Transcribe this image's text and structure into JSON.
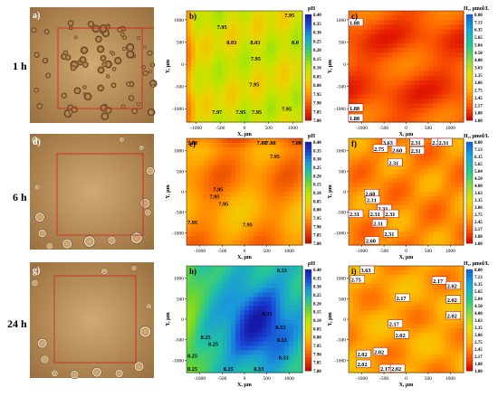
{
  "row_labels": [
    "1 h",
    "6 h",
    "24 h"
  ],
  "panel_letters": [
    "a)",
    "b)",
    "c)",
    "d)",
    "e)",
    "f)",
    "g)",
    "h)",
    "i)"
  ],
  "colors": {
    "ph_scale": [
      "#b40e00",
      "#e33a00",
      "#ff7a00",
      "#ffb000",
      "#e6d800",
      "#b8e600",
      "#6ad630",
      "#22c4a0",
      "#1a9ad8",
      "#1846d8",
      "#1818a8"
    ],
    "h2_scale": [
      "#d80000",
      "#ff6000",
      "#ffb000",
      "#e8e000",
      "#88d840",
      "#20c890",
      "#18a8e0",
      "#1060d8"
    ],
    "frame_red": "#d02020",
    "micro_base": "#b48a52",
    "micro_dark": "#3a2a18"
  },
  "chart_data": [
    {
      "type": "heatmap",
      "panel": "b)",
      "quantity": "pH",
      "colorbar_label": "pH",
      "xlabel": "X, µm",
      "ylabel": "Y, µm",
      "xlim": [
        -1200,
        1200
      ],
      "ylim": [
        -1300,
        1200
      ],
      "xticks": [
        "-1000",
        "-500",
        "0",
        "500",
        "1000"
      ],
      "yticks": [
        "1000",
        "500",
        "0",
        "-500",
        "-1000"
      ],
      "colorbar_ticks": [
        "8.40",
        "8.35",
        "8.30",
        "8.25",
        "8.20",
        "8.15",
        "8.10",
        "8.05",
        "8.00",
        "7.95",
        "7.90",
        "7.85",
        "7.80"
      ],
      "colorbar_range": [
        7.8,
        8.4
      ],
      "mean": 7.98,
      "annotations": [
        {
          "x": 980,
          "y": 1150,
          "text": "7.95"
        },
        {
          "x": -420,
          "y": 850,
          "text": "7.95"
        },
        {
          "x": -220,
          "y": 510,
          "text": "8.03"
        },
        {
          "x": 270,
          "y": 510,
          "text": "8.03"
        },
        {
          "x": 1160,
          "y": 510,
          "text": "8.0"
        },
        {
          "x": 280,
          "y": 140,
          "text": "7.95"
        },
        {
          "x": 250,
          "y": -440,
          "text": "7.95"
        },
        {
          "x": 920,
          "y": -980,
          "text": "7.95"
        },
        {
          "x": -520,
          "y": -1060,
          "text": "7.97"
        },
        {
          "x": -30,
          "y": -1060,
          "text": "7.95"
        },
        {
          "x": 300,
          "y": -1060,
          "text": "7.95"
        }
      ]
    },
    {
      "type": "heatmap",
      "panel": "c)",
      "quantity": "H2, µmol/L",
      "colorbar_label": "H₂, µmol/L",
      "xlabel": "X, µm",
      "ylabel": "Y, µm",
      "xlim": [
        -1300,
        1300
      ],
      "ylim": [
        -1300,
        1200
      ],
      "xticks": [
        "-1000",
        "-500",
        "0",
        "500",
        "1000"
      ],
      "yticks": [
        "1000",
        "500",
        "0",
        "-500",
        "-1000"
      ],
      "colorbar_ticks": [
        "8.00",
        "7.13",
        "6.35",
        "5.65",
        "5.04",
        "4.50",
        "4.00",
        "3.63",
        "3.35",
        "3.06",
        "2.75",
        "2.45",
        "2.17",
        "1.88",
        "1.00"
      ],
      "colorbar_range": [
        1.0,
        8.0
      ],
      "mean": 1.9,
      "annotations": [
        {
          "x": -1220,
          "y": 950,
          "text": "1.88"
        },
        {
          "x": -1180,
          "y": -970,
          "text": "1.88"
        },
        {
          "x": -1220,
          "y": -1200,
          "text": "1.88"
        }
      ]
    },
    {
      "type": "heatmap",
      "panel": "e)",
      "quantity": "pH",
      "colorbar_label": "pH",
      "xlabel": "X, µm",
      "ylabel": "Y, µm",
      "xlim": [
        -1300,
        1300
      ],
      "ylim": [
        -1300,
        1300
      ],
      "xticks": [
        "-1000",
        "-500",
        "0",
        "500",
        "1000"
      ],
      "yticks": [
        "1000",
        "500",
        "0",
        "-500",
        "-1000"
      ],
      "colorbar_ticks": [
        "8.40",
        "8.35",
        "8.30",
        "8.25",
        "8.20",
        "8.15",
        "8.10",
        "8.05",
        "8.00",
        "7.95",
        "7.90",
        "7.85",
        "7.80"
      ],
      "colorbar_range": [
        7.8,
        8.4
      ],
      "mean": 7.95,
      "annotations": [
        {
          "x": -1250,
          "y": 1220,
          "text": "7.88"
        },
        {
          "x": 440,
          "y": 1220,
          "text": "7.88"
        },
        {
          "x": 640,
          "y": 1220,
          "text": "7.88"
        },
        {
          "x": 1260,
          "y": 1220,
          "text": "7.88"
        },
        {
          "x": 730,
          "y": 880,
          "text": "7.95"
        },
        {
          "x": -540,
          "y": 80,
          "text": "7.95"
        },
        {
          "x": -620,
          "y": -100,
          "text": "7.95"
        },
        {
          "x": -420,
          "y": -280,
          "text": "7.95"
        },
        {
          "x": -1210,
          "y": -730,
          "text": "7.95"
        },
        {
          "x": 120,
          "y": -780,
          "text": "7.95"
        }
      ]
    },
    {
      "type": "heatmap",
      "panel": "f)",
      "quantity": "H2, µmol/L",
      "colorbar_label": "H₂, µmol/L",
      "xlabel": "X, µm",
      "ylabel": "Y, µm",
      "xlim": [
        -1300,
        1300
      ],
      "ylim": [
        -1300,
        1300
      ],
      "xticks": [
        "-1000",
        "-500",
        "0",
        "500",
        "1000"
      ],
      "yticks": [
        "1000",
        "500",
        "0",
        "-500",
        "-1000"
      ],
      "colorbar_ticks": [
        "8.00",
        "7.13",
        "6.35",
        "5.65",
        "5.04",
        "4.50",
        "4.00",
        "3.63",
        "3.35",
        "3.06",
        "2.75",
        "2.45",
        "2.17",
        "1.88",
        "1.00"
      ],
      "colorbar_range": [
        1.0,
        8.0
      ],
      "mean": 2.35,
      "annotations": [
        {
          "x": -360,
          "y": 1220,
          "text": "3.63"
        },
        {
          "x": 270,
          "y": 1220,
          "text": "2.31"
        },
        {
          "x": 750,
          "y": 1220,
          "text": "2.31"
        },
        {
          "x": 900,
          "y": 1260,
          "text": "2.31"
        },
        {
          "x": -560,
          "y": 1060,
          "text": "2.75"
        },
        {
          "x": -150,
          "y": 1030,
          "text": "2.60"
        },
        {
          "x": 270,
          "y": 1010,
          "text": "2.31"
        },
        {
          "x": -230,
          "y": 720,
          "text": "2.31"
        },
        {
          "x": -760,
          "y": -30,
          "text": "2.60"
        },
        {
          "x": -730,
          "y": -190,
          "text": "2.31"
        },
        {
          "x": -470,
          "y": -400,
          "text": "2.31"
        },
        {
          "x": -1120,
          "y": -530,
          "text": "2.31"
        },
        {
          "x": -650,
          "y": -530,
          "text": "2.31"
        },
        {
          "x": -310,
          "y": -530,
          "text": "2.31"
        },
        {
          "x": -580,
          "y": -760,
          "text": "2.31"
        },
        {
          "x": -330,
          "y": -1010,
          "text": "2.31"
        },
        {
          "x": -750,
          "y": -1180,
          "text": "2.60"
        }
      ]
    },
    {
      "type": "heatmap",
      "panel": "h)",
      "quantity": "pH",
      "colorbar_label": "pH",
      "xlabel": "X, µm",
      "ylabel": "Y, µm",
      "xlim": [
        -1300,
        1300
      ],
      "ylim": [
        -1300,
        1300
      ],
      "xticks": [
        "-1000",
        "-500",
        "0",
        "500",
        "1000"
      ],
      "yticks": [
        "1000",
        "500",
        "0",
        "-500",
        "-1000"
      ],
      "colorbar_ticks": [
        "8.40",
        "8.35",
        "8.30",
        "8.25",
        "8.20",
        "8.15",
        "8.10",
        "8.05",
        "8.00",
        "7.95",
        "7.90",
        "7.85",
        "7.80"
      ],
      "colorbar_range": [
        7.8,
        8.4
      ],
      "mean": 8.3,
      "annotations": [
        {
          "x": 890,
          "y": 1240,
          "text": "8.33"
        },
        {
          "x": 560,
          "y": 150,
          "text": "8.33"
        },
        {
          "x": 860,
          "y": -180,
          "text": "8.33"
        },
        {
          "x": -820,
          "y": -420,
          "text": "8.25"
        },
        {
          "x": -650,
          "y": -580,
          "text": "8.25"
        },
        {
          "x": 890,
          "y": -480,
          "text": "8.33"
        },
        {
          "x": -1220,
          "y": -870,
          "text": "8.25"
        },
        {
          "x": 930,
          "y": -910,
          "text": "8.33"
        },
        {
          "x": -1220,
          "y": -1200,
          "text": "8.25"
        },
        {
          "x": -310,
          "y": -1220,
          "text": "8.25"
        },
        {
          "x": 370,
          "y": -1190,
          "text": "8.33"
        }
      ]
    },
    {
      "type": "heatmap",
      "panel": "i)",
      "quantity": "H2, µmol/L",
      "colorbar_label": "H₂, µmol/L",
      "xlabel": "X, µm",
      "ylabel": "Y, µm",
      "xlim": [
        -1300,
        1300
      ],
      "ylim": [
        -1300,
        1300
      ],
      "xticks": [
        "-1000",
        "-500",
        "0",
        "500",
        "1000"
      ],
      "yticks": [
        "1000",
        "500",
        "0",
        "-500",
        "-1000"
      ],
      "colorbar_ticks": [
        "8.00",
        "7.13",
        "6.35",
        "5.65",
        "5.04",
        "4.50",
        "4.00",
        "3.63",
        "3.35",
        "3.06",
        "2.75",
        "2.45",
        "2.17",
        "1.88",
        "1.00"
      ],
      "colorbar_range": [
        1.0,
        8.0
      ],
      "mean": 2.15,
      "annotations": [
        {
          "x": -860,
          "y": 1250,
          "text": "3.63"
        },
        {
          "x": -1080,
          "y": 980,
          "text": "2.75"
        },
        {
          "x": 770,
          "y": 950,
          "text": "2.17"
        },
        {
          "x": 1090,
          "y": 830,
          "text": "2.02"
        },
        {
          "x": 1090,
          "y": 490,
          "text": "2.02"
        },
        {
          "x": -60,
          "y": 530,
          "text": "2.17"
        },
        {
          "x": 1090,
          "y": 100,
          "text": "2.02"
        },
        {
          "x": -220,
          "y": -100,
          "text": "2.17"
        },
        {
          "x": -80,
          "y": -370,
          "text": "2.02"
        },
        {
          "x": -940,
          "y": -840,
          "text": "2.02"
        },
        {
          "x": -560,
          "y": -780,
          "text": "2.02"
        },
        {
          "x": -940,
          "y": -1080,
          "text": "2.02"
        },
        {
          "x": -420,
          "y": -1230,
          "text": "2.17"
        },
        {
          "x": -170,
          "y": -1270,
          "text": "2.02"
        }
      ]
    }
  ]
}
